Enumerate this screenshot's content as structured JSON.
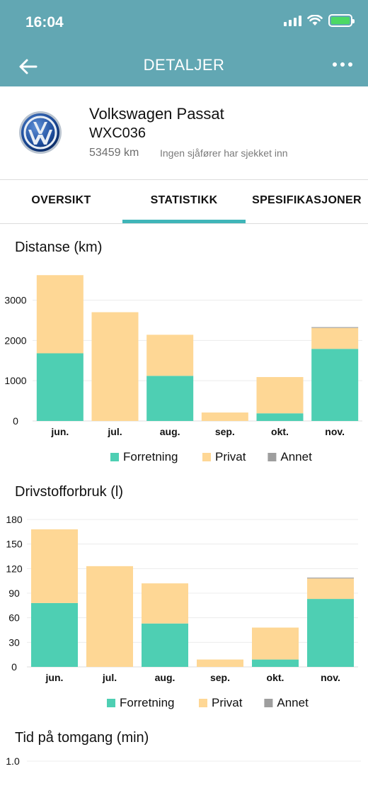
{
  "status_bar": {
    "time": "16:04"
  },
  "nav": {
    "title": "DETALJER",
    "back_icon": "arrow-left-icon",
    "more_icon": "more-dots-icon"
  },
  "vehicle": {
    "name": "Volkswagen Passat",
    "plate": "WXC036",
    "odometer": "53459 km",
    "driver_status": "Ingen sjåfører har sjekket inn",
    "logo": "volkswagen-logo"
  },
  "tabs": [
    {
      "label": "OVERSIKT",
      "active": false
    },
    {
      "label": "STATISTIKK",
      "active": true
    },
    {
      "label": "SPESIFIKASJONER",
      "active": false
    }
  ],
  "colors": {
    "accent": "#3fb5b8",
    "header": "#62a7b3",
    "forretning": "#4ecfb3",
    "privat": "#fed795",
    "annet": "#9e9e9e"
  },
  "chart_data": [
    {
      "type": "bar",
      "stacked": true,
      "title": "Distanse (km)",
      "categories": [
        "jun.",
        "jul.",
        "aug.",
        "sep.",
        "okt.",
        "nov."
      ],
      "series": [
        {
          "name": "Forretning",
          "values": [
            1680,
            0,
            1120,
            0,
            190,
            1790
          ]
        },
        {
          "name": "Privat",
          "values": [
            1940,
            2700,
            1020,
            210,
            900,
            520
          ]
        },
        {
          "name": "Annet",
          "values": [
            0,
            0,
            0,
            0,
            0,
            20
          ]
        }
      ],
      "yticks": [
        0,
        1000,
        2000,
        3000
      ],
      "ylim": [
        0,
        3800
      ],
      "grid": true,
      "legend": "bottom"
    },
    {
      "type": "bar",
      "stacked": true,
      "title": "Drivstofforbruk (l)",
      "categories": [
        "jun.",
        "jul.",
        "aug.",
        "sep.",
        "okt.",
        "nov."
      ],
      "series": [
        {
          "name": "Forretning",
          "values": [
            78,
            0,
            53,
            0,
            9,
            83
          ]
        },
        {
          "name": "Privat",
          "values": [
            90,
            123,
            49,
            9,
            39,
            25
          ]
        },
        {
          "name": "Annet",
          "values": [
            0,
            0,
            0,
            0,
            0,
            1
          ]
        }
      ],
      "yticks": [
        0,
        30,
        60,
        90,
        120,
        150,
        180
      ],
      "ylim": [
        0,
        180
      ],
      "grid": true,
      "legend": "bottom"
    },
    {
      "type": "bar",
      "stacked": true,
      "title": "Tid på tomgang (min)",
      "categories": [],
      "series": [],
      "yticks": [
        "1.0"
      ],
      "grid": true
    }
  ]
}
